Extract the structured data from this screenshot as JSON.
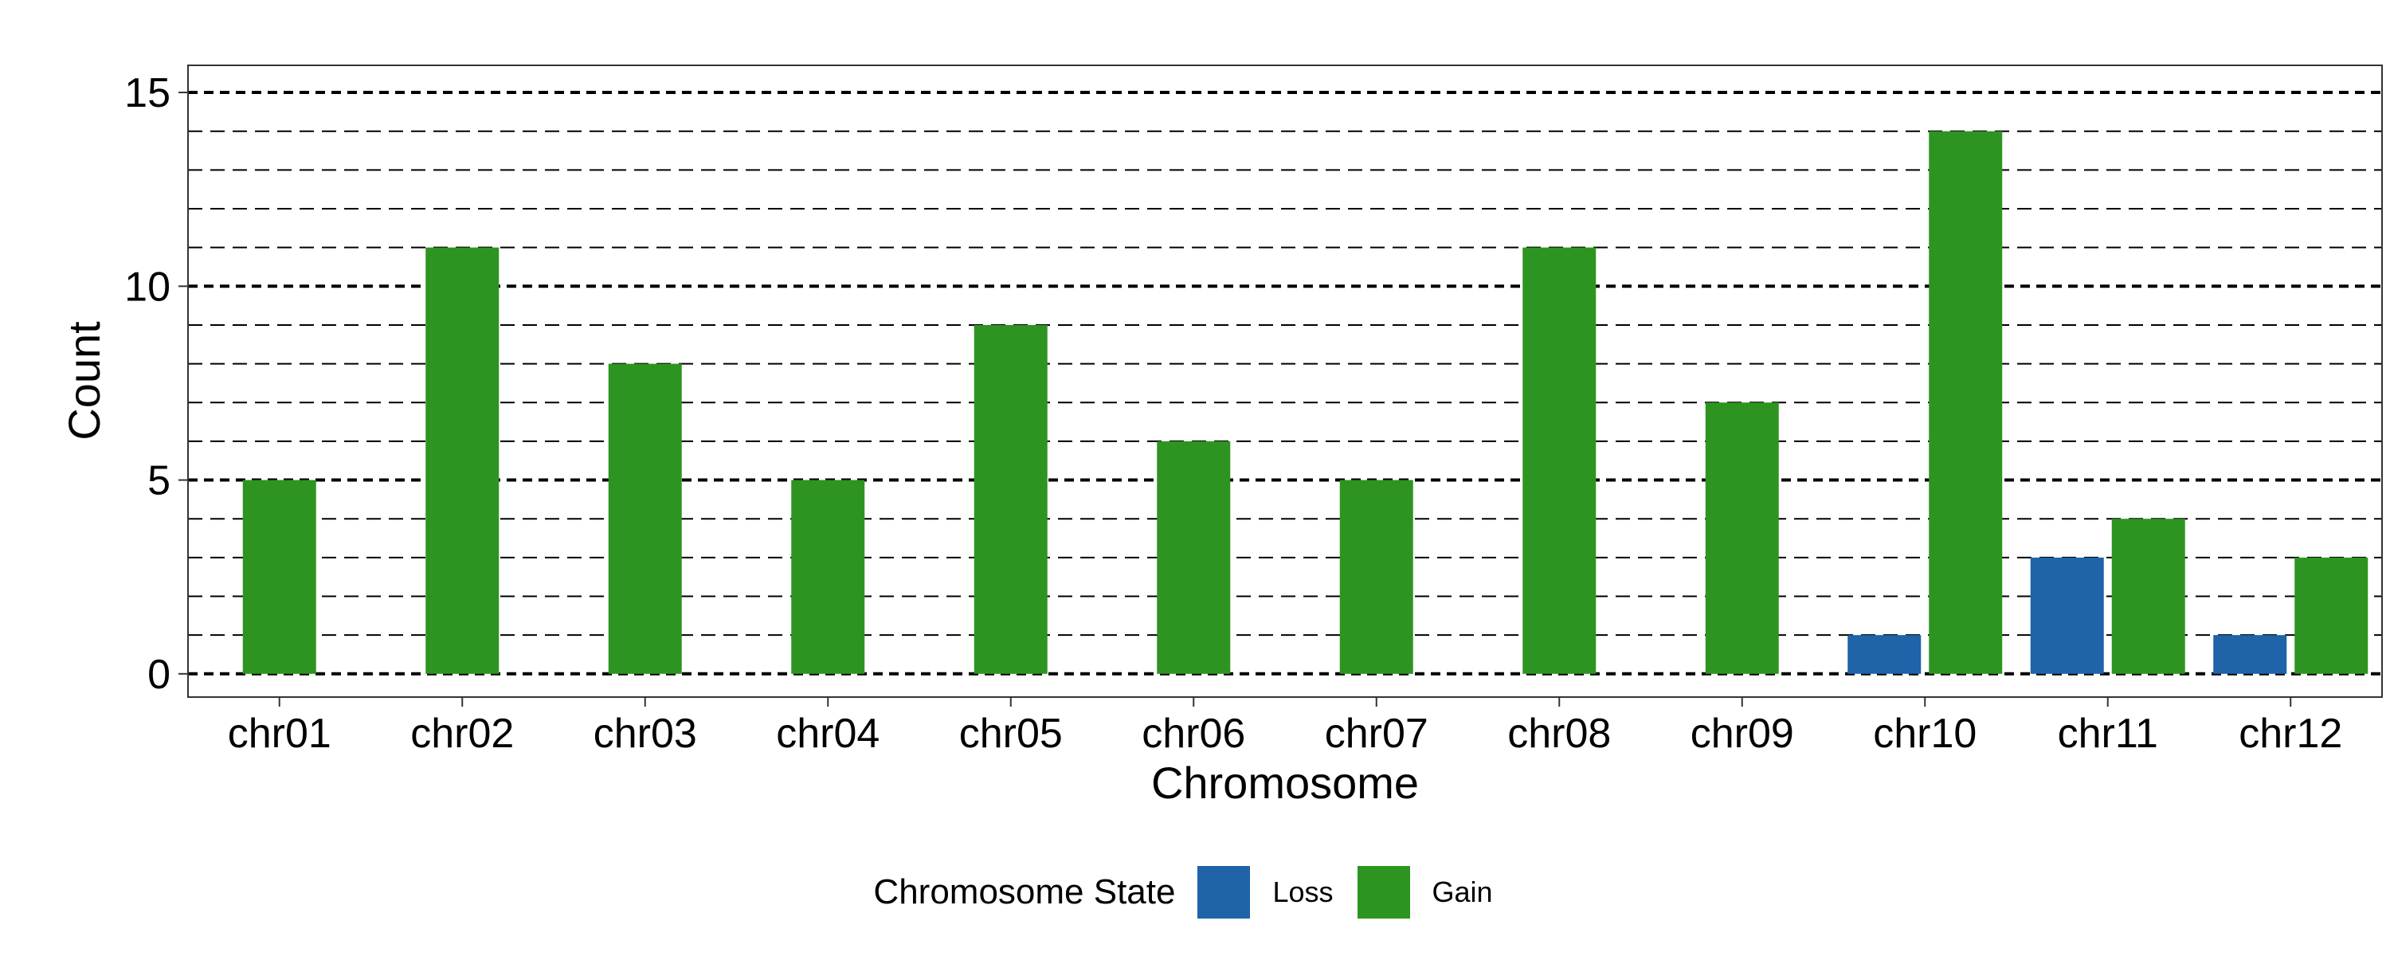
{
  "chart_data": {
    "type": "bar",
    "xlabel": "Chromosome",
    "ylabel": "Count",
    "ylim": [
      -0.6,
      15.7
    ],
    "yticks": [
      0,
      5,
      10,
      15
    ],
    "minor_gridlines_every": 1,
    "grid": true,
    "legend_position": "bottom",
    "legend_title": "Chromosome State",
    "categories": [
      "chr01",
      "chr02",
      "chr03",
      "chr04",
      "chr05",
      "chr06",
      "chr07",
      "chr08",
      "chr09",
      "chr10",
      "chr11",
      "chr12"
    ],
    "series": [
      {
        "name": "Loss",
        "color": "#1f63a8",
        "values": [
          0,
          0,
          0,
          0,
          0,
          0,
          0,
          0,
          0,
          1,
          3,
          1
        ]
      },
      {
        "name": "Gain",
        "color": "#2e9421",
        "values": [
          5,
          11,
          8,
          5,
          9,
          6,
          5,
          11,
          7,
          14,
          4,
          3
        ]
      }
    ]
  }
}
